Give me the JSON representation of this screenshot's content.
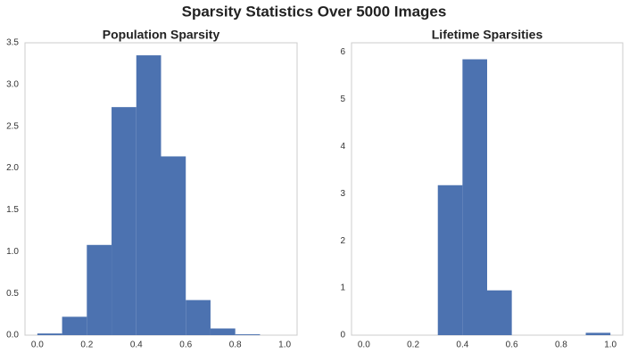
{
  "title": "Sparsity Statistics Over 5000 Images",
  "chart_data": [
    {
      "type": "histogram",
      "title": "Population Sparsity",
      "bins": [
        0.0,
        0.1,
        0.2,
        0.3,
        0.4,
        0.5,
        0.6,
        0.7,
        0.8,
        0.9
      ],
      "values": [
        0.02,
        0.22,
        1.08,
        2.73,
        3.35,
        2.14,
        0.42,
        0.08,
        0.01
      ],
      "color": "#4c72b0",
      "xlim": [
        -0.05,
        1.05
      ],
      "ylim": [
        0,
        3.5
      ],
      "xticks": [
        {
          "value": 0,
          "label": "0.0"
        },
        0.2,
        0.4,
        0.6,
        0.8,
        {
          "value": 1,
          "label": "1.0"
        }
      ],
      "yticks": [
        {
          "value": 0,
          "label": "0.0"
        },
        0.5,
        {
          "value": 1,
          "label": "1.0"
        },
        1.5,
        {
          "value": 2,
          "label": "2.0"
        },
        2.5,
        {
          "value": 3,
          "label": "3.0"
        },
        3.5
      ]
    },
    {
      "type": "histogram",
      "title": "Lifetime Sparsities",
      "bins": [
        0.0,
        0.1,
        0.2,
        0.3,
        0.4,
        0.5,
        0.6,
        0.7,
        0.8,
        0.9,
        1.0
      ],
      "values": [
        0,
        0,
        0,
        3.18,
        5.85,
        0.95,
        0,
        0,
        0,
        0.05
      ],
      "color": "#4c72b0",
      "xlim": [
        -0.05,
        1.05
      ],
      "ylim": [
        0,
        6.2
      ],
      "xticks": [
        {
          "value": 0,
          "label": "0.0"
        },
        0.2,
        0.4,
        0.6,
        0.8,
        {
          "value": 1,
          "label": "1.0"
        }
      ],
      "yticks": [
        0,
        1,
        2,
        3,
        4,
        5,
        6
      ]
    }
  ]
}
